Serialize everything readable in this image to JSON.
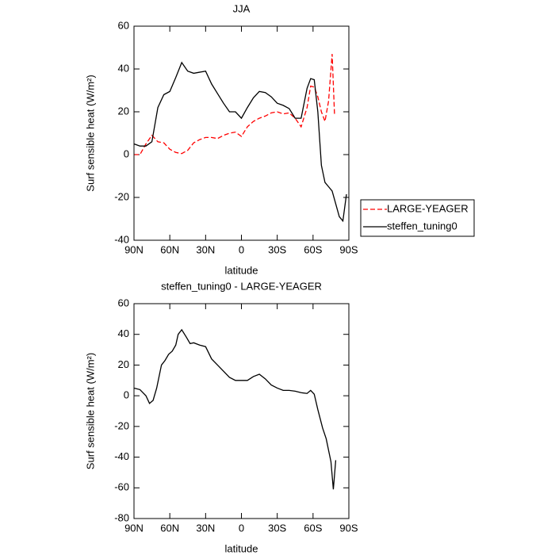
{
  "chart_data": [
    {
      "type": "line",
      "title": "JJA",
      "x_label": "latitude",
      "y_label": "Surf sensible heat (W/m²)",
      "x": [
        90,
        85,
        80,
        75,
        70,
        65,
        60,
        55,
        50,
        45,
        40,
        35,
        30,
        25,
        20,
        15,
        10,
        5,
        0,
        -5,
        -10,
        -15,
        -20,
        -25,
        -30,
        -35,
        -40,
        -45,
        -50,
        -55,
        -58,
        -61,
        -64,
        -67,
        -70,
        -73,
        -76,
        -78,
        -82,
        -85,
        -88
      ],
      "series": [
        {
          "name": "LARGE-YEAGER",
          "color": "#ff0000",
          "dashed": true,
          "values": [
            0,
            0,
            5,
            9,
            6,
            5.5,
            2.5,
            1,
            0.5,
            2,
            5.5,
            7,
            8,
            8,
            7.5,
            9,
            10,
            10.5,
            8.5,
            13,
            15.5,
            17,
            18,
            19.5,
            20,
            19,
            19.5,
            17,
            13,
            22,
            32,
            31.5,
            27,
            20,
            15.5,
            25,
            47,
            18.5,
            null,
            null,
            null
          ]
        },
        {
          "name": "steffen_tuning0",
          "color": "#000000",
          "dashed": false,
          "values": [
            5,
            4,
            4,
            6,
            22,
            28,
            29.5,
            36,
            43,
            39,
            38,
            38.5,
            39,
            33,
            28.5,
            24,
            20,
            20,
            17,
            22,
            26.5,
            29.5,
            29,
            27,
            24,
            23,
            21.5,
            17,
            17,
            31,
            35.5,
            35,
            20,
            -5,
            -13,
            -15,
            -17,
            -21,
            -29,
            -31,
            -18.5
          ]
        }
      ],
      "xlim": [
        90,
        -90
      ],
      "xticks": [
        {
          "value": 90,
          "label": "90N"
        },
        {
          "value": 60,
          "label": "60N"
        },
        {
          "value": 30,
          "label": "30N"
        },
        0,
        {
          "value": -30,
          "label": "30S"
        },
        {
          "value": -60,
          "label": "60S"
        },
        {
          "value": -90,
          "label": "90S"
        }
      ],
      "ylim": [
        -40,
        60
      ],
      "yticks": [
        -40,
        -20,
        0,
        20,
        40,
        60
      ],
      "legend": "right"
    },
    {
      "type": "line",
      "title": "steffen_tuning0 - LARGE-YEAGER",
      "x_label": "latitude",
      "y_label": "Surf sensible heat (W/m²)",
      "x": [
        90,
        85,
        80,
        77,
        74,
        71,
        67,
        64,
        61,
        58,
        55,
        53,
        50,
        46,
        43,
        40,
        35,
        30,
        25,
        20,
        15,
        10,
        5,
        0,
        -5,
        -10,
        -15,
        -20,
        -25,
        -30,
        -35,
        -40,
        -45,
        -50,
        -55,
        -58,
        -61,
        -64,
        -68,
        -71,
        -75,
        -77,
        -79
      ],
      "series": [
        {
          "color": "#000000",
          "dashed": false,
          "values": [
            5,
            4,
            0,
            -5,
            -3,
            5,
            20,
            23,
            27,
            29,
            33,
            40,
            43,
            38,
            34,
            34.5,
            33,
            32,
            24,
            20,
            16,
            12,
            10,
            10,
            10,
            12.5,
            14,
            11,
            7,
            5,
            3.5,
            3.5,
            3,
            2,
            1.5,
            3.5,
            1,
            -9,
            -21,
            -28,
            -43,
            -61,
            -42
          ]
        }
      ],
      "xlim": [
        90,
        -90
      ],
      "xticks": [
        {
          "value": 90,
          "label": "90N"
        },
        {
          "value": 60,
          "label": "60N"
        },
        {
          "value": 30,
          "label": "30N"
        },
        0,
        {
          "value": -30,
          "label": "30S"
        },
        {
          "value": -60,
          "label": "60S"
        },
        {
          "value": -90,
          "label": "90S"
        }
      ],
      "ylim": [
        -80,
        60
      ],
      "yticks": [
        -80,
        -60,
        -40,
        -20,
        0,
        20,
        40,
        60
      ]
    }
  ]
}
